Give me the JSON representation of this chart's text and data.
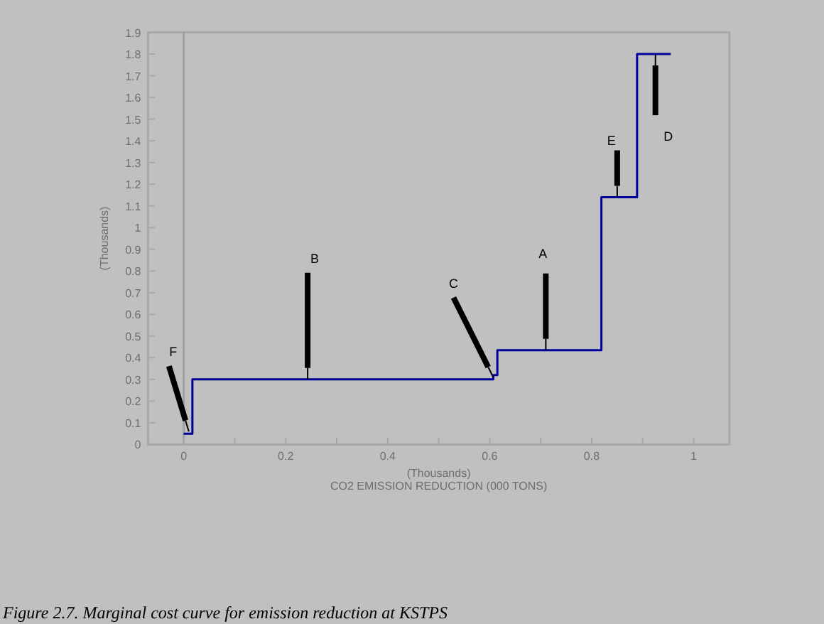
{
  "chart_data": {
    "type": "step",
    "xlabel": "(Thousands)\nCO2 EMISSION REDUCTION (000 TONS)",
    "ylabel": "(Thousands)",
    "series": [
      {
        "color": "#000099",
        "x": [
          0,
          0.017,
          0.607,
          0.615,
          0.819,
          0.889,
          0.955
        ],
        "values": [
          0.05,
          0.3,
          0.32,
          0.435,
          1.14,
          1.8,
          1.8
        ]
      }
    ],
    "xlim": [
      -0.07,
      1.07
    ],
    "ylim": [
      0,
      1.9
    ],
    "xticks": [
      0,
      {
        "value": 0.1,
        "label": null
      },
      0.2,
      {
        "value": 0.3,
        "label": null
      },
      0.4,
      {
        "value": 0.5,
        "label": null
      },
      0.6,
      {
        "value": 0.7,
        "label": null
      },
      0.8,
      {
        "value": 0.9,
        "label": null
      },
      1
    ],
    "yticks": [
      0,
      0.1,
      0.2,
      0.3,
      0.4,
      0.5,
      0.6,
      0.7,
      0.8,
      0.9,
      1,
      1.1,
      1.2,
      1.3,
      1.4,
      1.5,
      1.6,
      1.7,
      1.8,
      1.9
    ],
    "ref_lines": [
      {
        "axis": "x",
        "value": 0,
        "color": "#a0a0a0"
      }
    ],
    "annotations": [
      {
        "text": "F",
        "x": 0.01,
        "y": 0.06
      },
      {
        "text": "B",
        "x": 0.243,
        "y": 0.3
      },
      {
        "text": "C",
        "x": 0.607,
        "y": 0.31
      },
      {
        "text": "A",
        "x": 0.71,
        "y": 0.435
      },
      {
        "text": "E",
        "x": 0.85,
        "y": 1.14
      },
      {
        "text": "D",
        "x": 0.925,
        "y": 1.8
      },
      "Figure 2.7. Marginal cost curve for emission reduction at KSTPS"
    ]
  }
}
